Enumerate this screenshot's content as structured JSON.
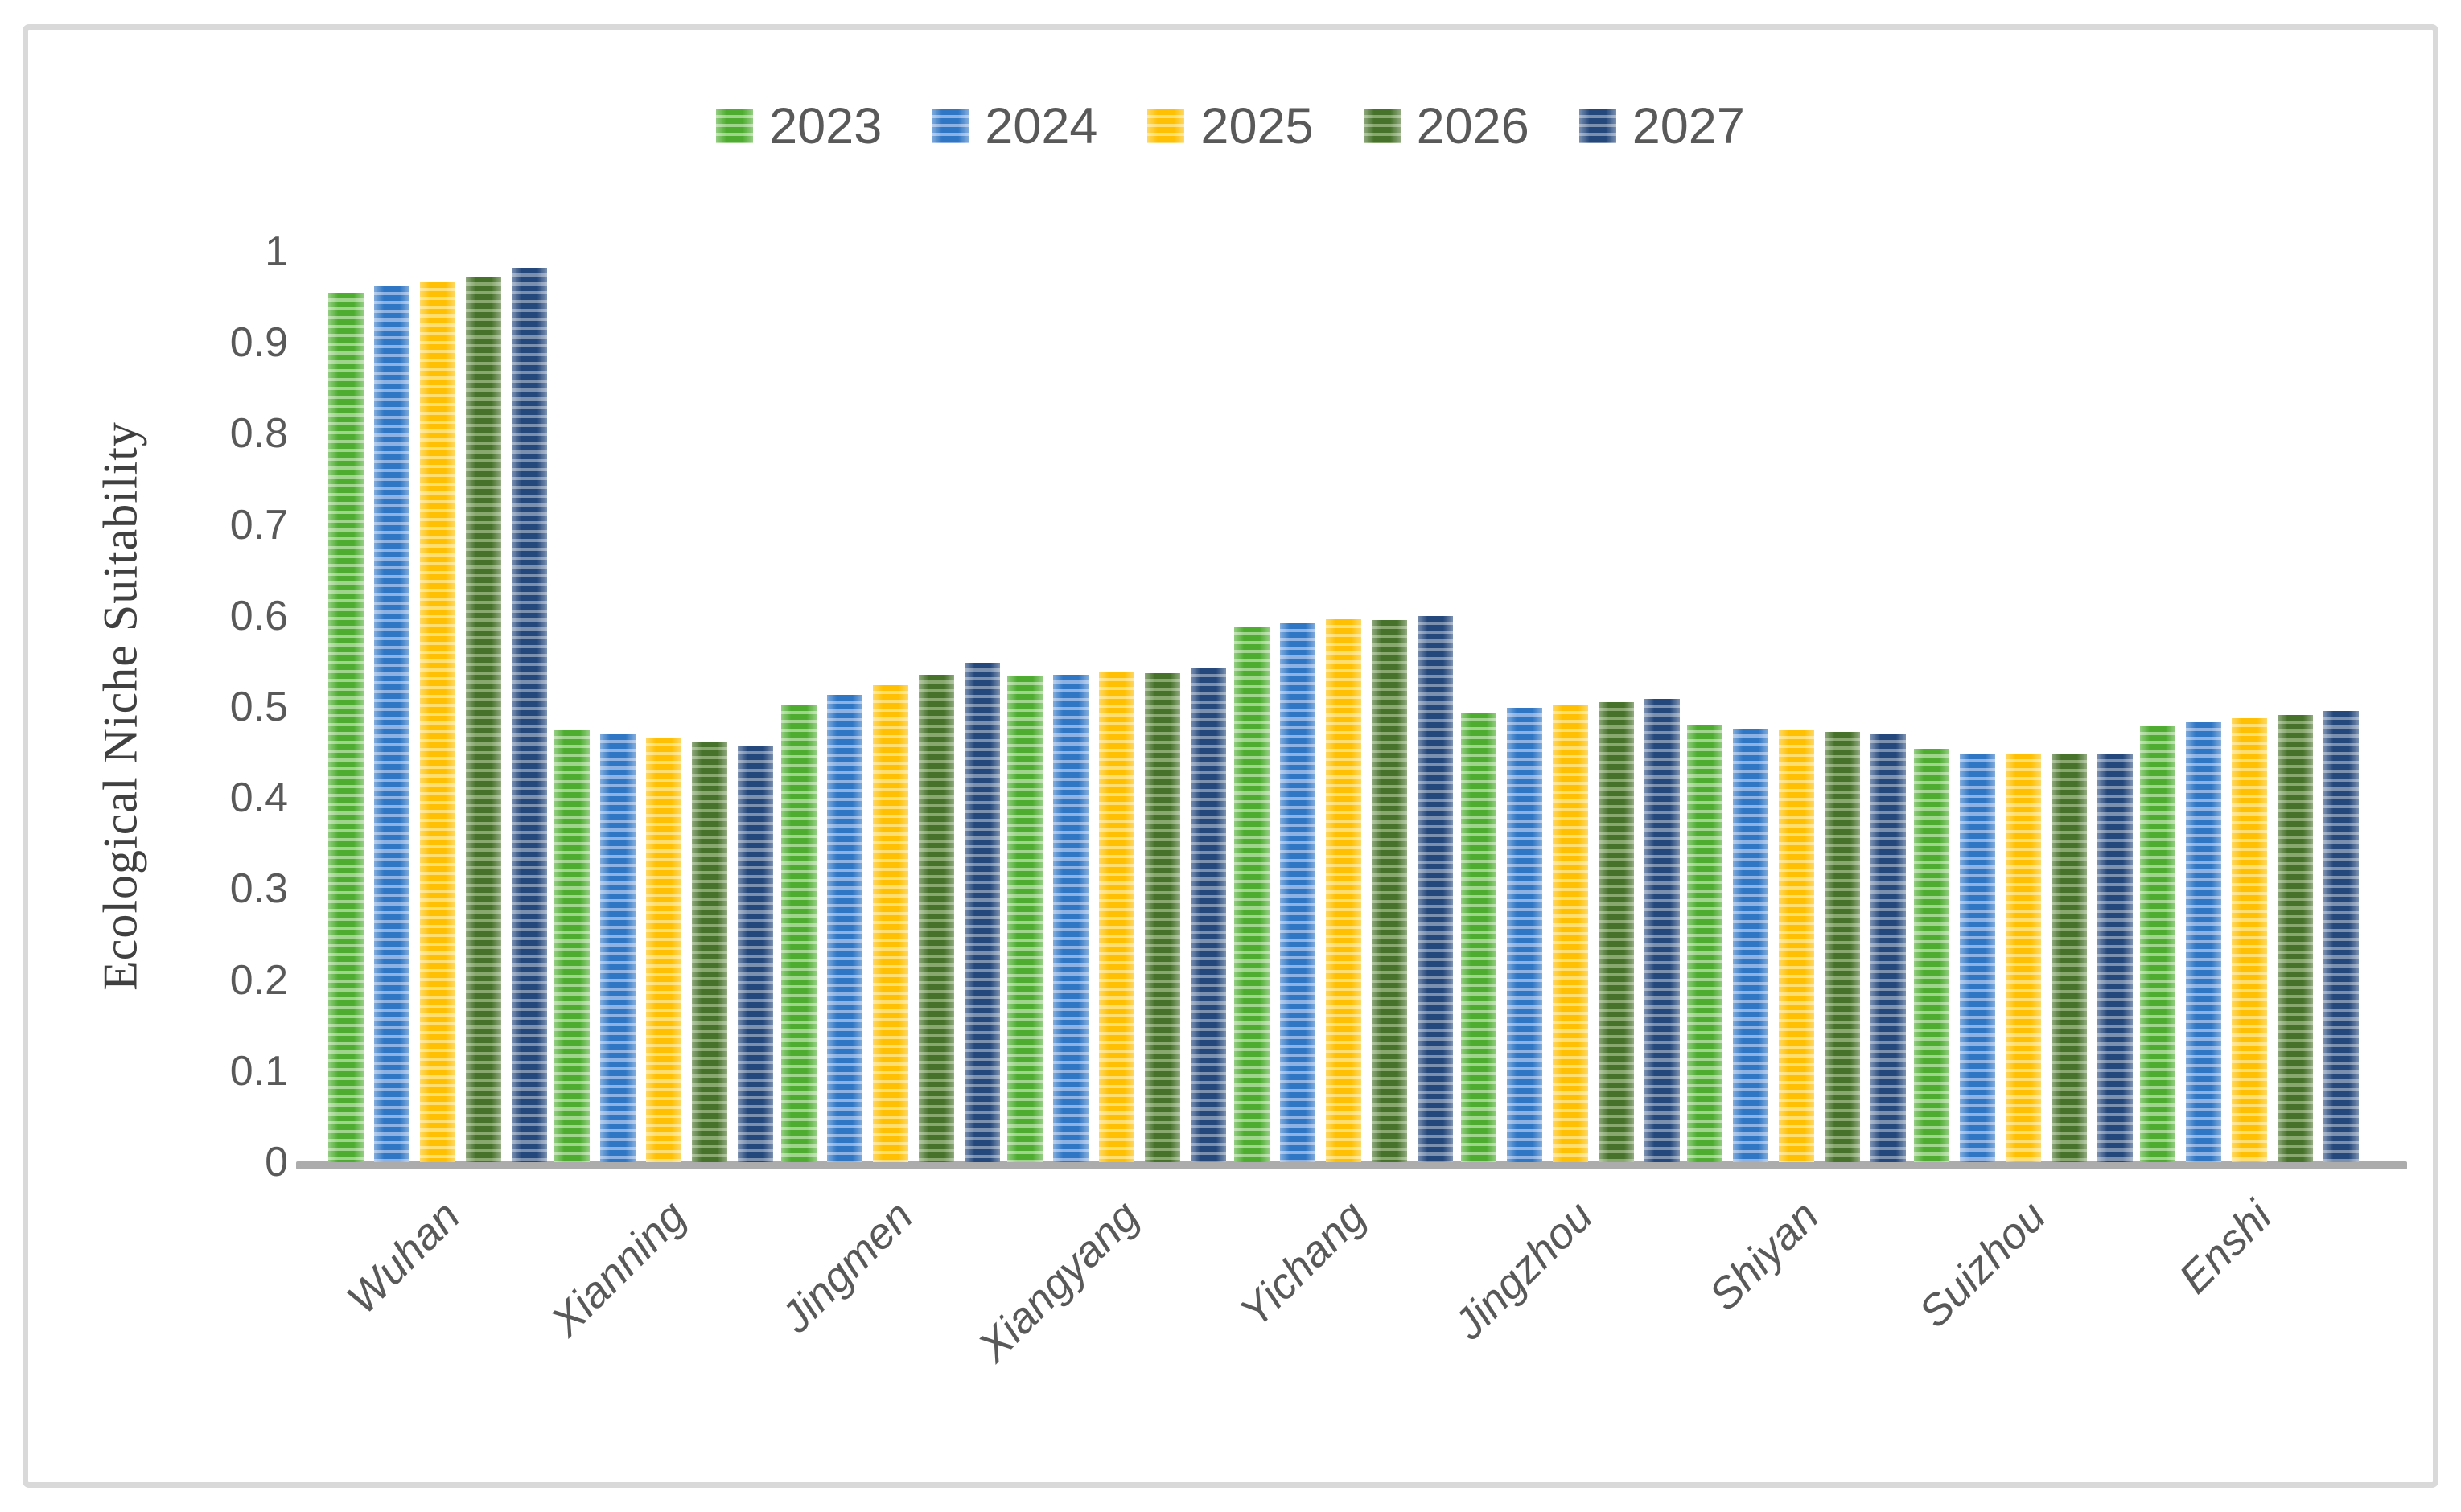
{
  "figure": {
    "background": "#ffffff",
    "border_color": "#d9d9d9",
    "axis_line_color": "#acacac",
    "tick_label_color": "#595959",
    "category_label_color": "#595959",
    "y_title_color": "#404040"
  },
  "chart_data": {
    "type": "bar",
    "title": "",
    "xlabel": "",
    "ylabel": "Ecological Niche Suitability",
    "ylim": [
      0,
      1
    ],
    "yticks": [
      "0",
      "0.1",
      "0.2",
      "0.3",
      "0.4",
      "0.5",
      "0.6",
      "0.7",
      "0.8",
      "0.9",
      "1"
    ],
    "grid": false,
    "legend_position": "top",
    "bar_texture": "horizontal-stripes",
    "categories": [
      "Wuhan",
      "Xianning",
      "Jingmen",
      "Xiangyang",
      "Yichang",
      "Jingzhou",
      "Shiyan",
      "Suizhou",
      "Enshi"
    ],
    "series": [
      {
        "name": "2023",
        "color": "#4EAD31",
        "stripe_light": "#9FD48C",
        "values": [
          0.955,
          0.474,
          0.502,
          0.534,
          0.588,
          0.494,
          0.481,
          0.454,
          0.479
        ]
      },
      {
        "name": "2024",
        "color": "#2F76C5",
        "stripe_light": "#8CB1E2",
        "values": [
          0.962,
          0.47,
          0.513,
          0.535,
          0.592,
          0.499,
          0.476,
          0.449,
          0.483
        ]
      },
      {
        "name": "2025",
        "color": "#FFC003",
        "stripe_light": "#FFDE70",
        "values": [
          0.966,
          0.466,
          0.524,
          0.538,
          0.596,
          0.502,
          0.474,
          0.449,
          0.488
        ]
      },
      {
        "name": "2026",
        "color": "#47722B",
        "stripe_light": "#89A870",
        "values": [
          0.973,
          0.462,
          0.535,
          0.537,
          0.595,
          0.505,
          0.473,
          0.448,
          0.491
        ]
      },
      {
        "name": "2027",
        "color": "#24487C",
        "stripe_light": "#7B90AF",
        "values": [
          0.982,
          0.458,
          0.549,
          0.542,
          0.6,
          0.509,
          0.47,
          0.449,
          0.496
        ]
      }
    ]
  }
}
